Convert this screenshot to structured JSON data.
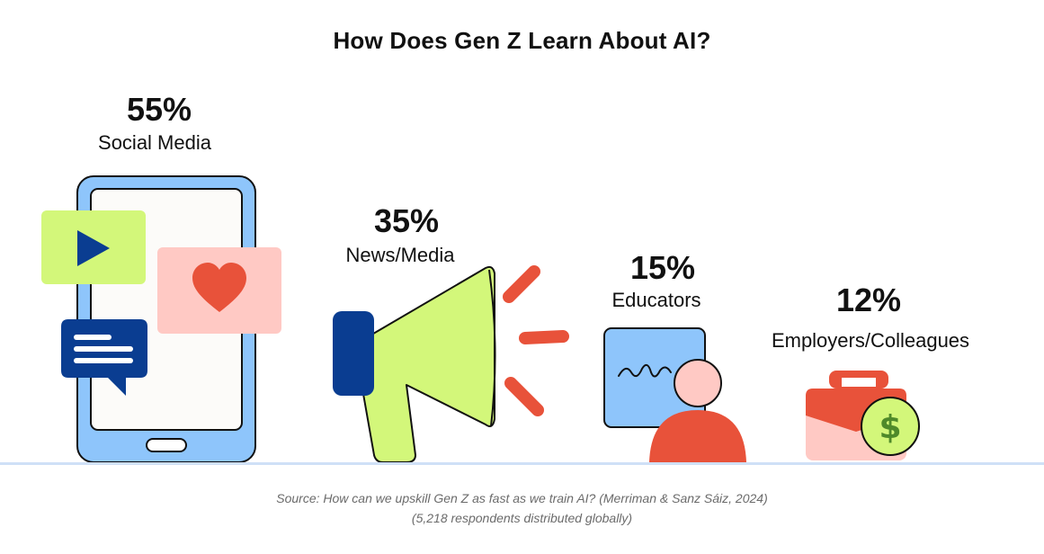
{
  "chart_data": {
    "type": "bar",
    "title": "How Does Gen Z Learn About AI?",
    "categories": [
      "Social Media",
      "News/Media",
      "Educators",
      "Employers/Colleagues"
    ],
    "values": [
      55,
      35,
      15,
      12
    ],
    "value_labels": [
      "55%",
      "35%",
      "15%",
      "12%"
    ],
    "unit": "%"
  },
  "source": {
    "line1": "Source: How can we upskill Gen Z as fast as we train AI? (Merriman & Sanz Sáiz, 2024)",
    "line2": "(5,218 respondents distributed globally)"
  },
  "colors": {
    "phone": "#8ec5fb",
    "green": "#d3f77a",
    "pink": "#ffc9c4",
    "red": "#e8523a",
    "navy": "#0a3d91",
    "dollar": "#4f8a2a"
  },
  "icons": [
    "phone-icon",
    "play-icon",
    "heart-icon",
    "chat-icon",
    "megaphone-icon",
    "educator-icon",
    "briefcase-icon",
    "dollar-icon"
  ]
}
